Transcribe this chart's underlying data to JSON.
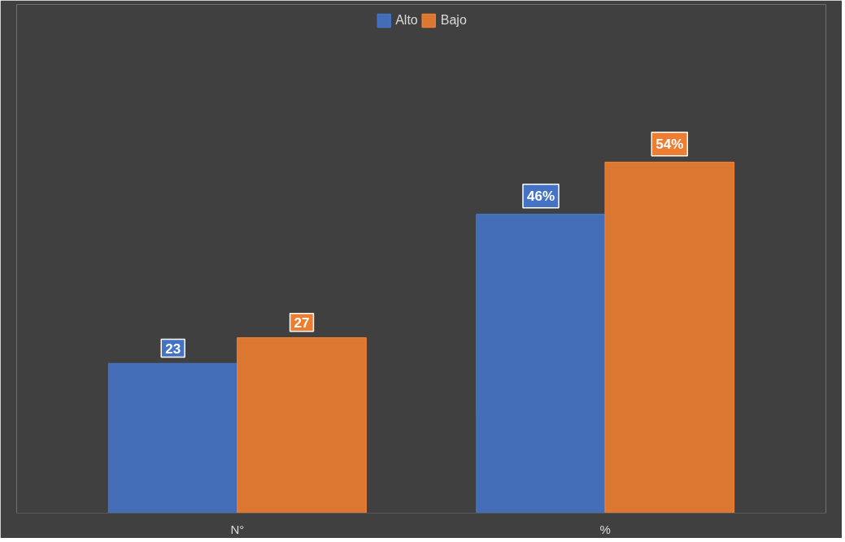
{
  "chart_data": {
    "type": "bar",
    "categories": [
      "N°",
      "%"
    ],
    "series": [
      {
        "name": "Alto",
        "color": "#4472c4",
        "values": [
          23,
          46
        ],
        "value_labels": [
          "23",
          "46%"
        ]
      },
      {
        "name": "Bajo",
        "color": "#ed7d31",
        "values": [
          27,
          54
        ],
        "value_labels": [
          "27",
          "54%"
        ]
      }
    ],
    "legend": "top",
    "grid": false
  }
}
